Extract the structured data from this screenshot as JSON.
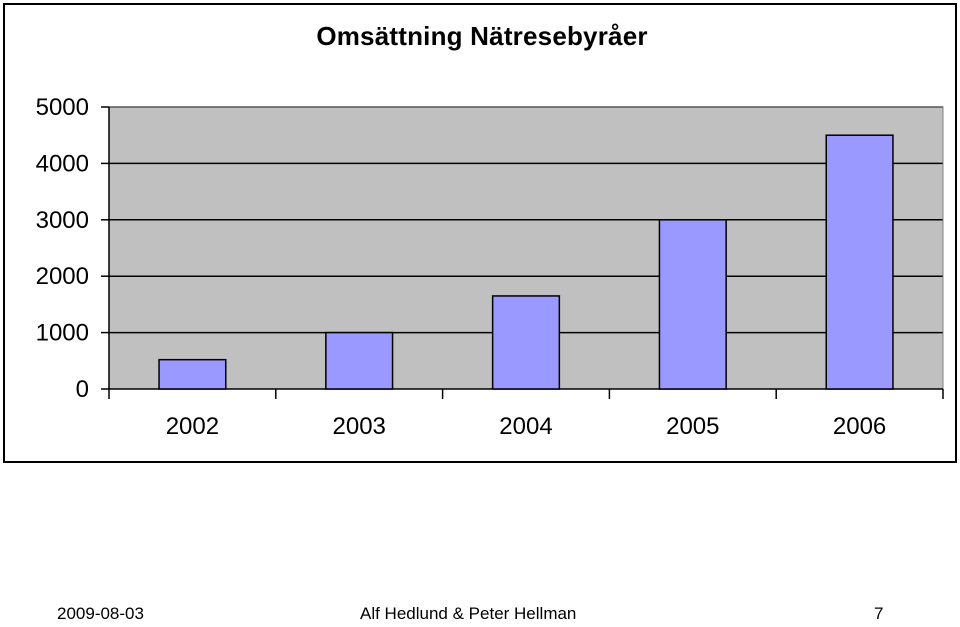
{
  "chart_data": {
    "type": "bar",
    "title": "Omsättning Nätresebyråer",
    "categories": [
      "2002",
      "2003",
      "2004",
      "2005",
      "2006"
    ],
    "values": [
      520,
      1000,
      1650,
      3000,
      4500
    ],
    "ylim": [
      0,
      5000
    ],
    "yticks": [
      0,
      1000,
      2000,
      3000,
      4000,
      5000
    ],
    "grid": true,
    "legend": "none",
    "colors": {
      "bar_fill": "#9999ff",
      "bar_stroke": "#000000",
      "plot_background": "#c0c0c0",
      "gridline": "#000000"
    }
  },
  "footer": {
    "date": "2009-08-03",
    "authors": "Alf Hedlund & Peter Hellman",
    "page_number": "7"
  }
}
